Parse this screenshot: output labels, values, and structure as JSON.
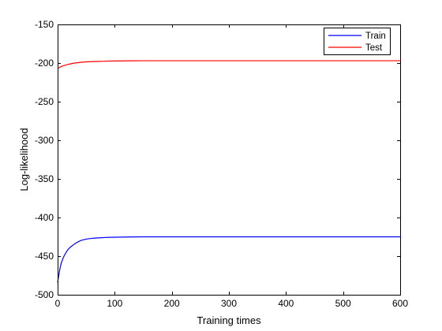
{
  "chart_data": {
    "type": "line",
    "xlabel": "Training times",
    "ylabel": "Log-likelihood",
    "xlim": [
      0,
      600
    ],
    "ylim": [
      -500,
      -150
    ],
    "x_ticks": [
      0,
      100,
      200,
      300,
      400,
      500,
      600
    ],
    "y_ticks": [
      -500,
      -450,
      -400,
      -350,
      -300,
      -250,
      -200,
      -150
    ],
    "grid": false,
    "legend_position": "top-right",
    "series": [
      {
        "name": "Train",
        "color": "#0000ff",
        "x": [
          0,
          5,
          10,
          15,
          20,
          30,
          40,
          50,
          60,
          80,
          100,
          150,
          200,
          300,
          400,
          500,
          600
        ],
        "y": [
          -484,
          -463,
          -452,
          -445,
          -440,
          -434,
          -430,
          -428,
          -427,
          -426,
          -425.5,
          -425,
          -425,
          -425,
          -425,
          -425,
          -425
        ]
      },
      {
        "name": "Test",
        "color": "#ff0000",
        "x": [
          0,
          5,
          10,
          20,
          30,
          50,
          75,
          100,
          150,
          200,
          300,
          400,
          500,
          600
        ],
        "y": [
          -207,
          -205,
          -203.5,
          -201.5,
          -200,
          -198.5,
          -197.8,
          -197.3,
          -197,
          -197,
          -197,
          -197,
          -197,
          -197
        ]
      }
    ]
  }
}
